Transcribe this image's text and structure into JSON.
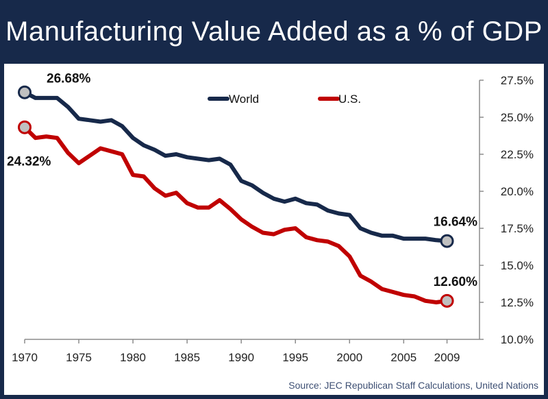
{
  "title": "Manufacturing Value Added as a % of GDP",
  "source": "Source: JEC Republican Staff Calculations, United Nations",
  "colors": {
    "world": "#17294a",
    "us": "#c00000",
    "marker_fill": "#c0c0c0",
    "title_bg": "#17294a"
  },
  "chart_data": {
    "type": "line",
    "title": "Manufacturing Value Added as a % of GDP",
    "xlabel": "",
    "ylabel": "",
    "xlim": [
      1970,
      2012
    ],
    "ylim": [
      10.0,
      27.5
    ],
    "x_ticks": [
      {
        "value": 1970,
        "label": "1970"
      },
      {
        "value": 1975,
        "label": "1975"
      },
      {
        "value": 1980,
        "label": "1980"
      },
      {
        "value": 1985,
        "label": "1985"
      },
      {
        "value": 1990,
        "label": "1990"
      },
      {
        "value": 1995,
        "label": "1995"
      },
      {
        "value": 2000,
        "label": "2000"
      },
      {
        "value": 2005,
        "label": "2005"
      },
      {
        "value": 2009,
        "label": "2009"
      }
    ],
    "y_ticks": [
      {
        "value": 10.0,
        "label": "10.0%"
      },
      {
        "value": 12.5,
        "label": "12.5%"
      },
      {
        "value": 15.0,
        "label": "15.0%"
      },
      {
        "value": 17.5,
        "label": "17.5%"
      },
      {
        "value": 20.0,
        "label": "20.0%"
      },
      {
        "value": 22.5,
        "label": "22.5%"
      },
      {
        "value": 25.0,
        "label": "25.0%"
      },
      {
        "value": 27.5,
        "label": "27.5%"
      }
    ],
    "x": [
      1970,
      1971,
      1972,
      1973,
      1974,
      1975,
      1976,
      1977,
      1978,
      1979,
      1980,
      1981,
      1982,
      1983,
      1984,
      1985,
      1986,
      1987,
      1988,
      1989,
      1990,
      1991,
      1992,
      1993,
      1994,
      1995,
      1996,
      1997,
      1998,
      1999,
      2000,
      2001,
      2002,
      2003,
      2004,
      2005,
      2006,
      2007,
      2008,
      2009
    ],
    "series": [
      {
        "name": "World",
        "key": "world",
        "values": [
          26.68,
          26.3,
          26.3,
          26.3,
          25.7,
          24.9,
          24.8,
          24.7,
          24.8,
          24.4,
          23.6,
          23.1,
          22.8,
          22.4,
          22.5,
          22.3,
          22.2,
          22.1,
          22.2,
          21.8,
          20.7,
          20.4,
          19.9,
          19.5,
          19.3,
          19.5,
          19.2,
          19.1,
          18.7,
          18.5,
          18.4,
          17.5,
          17.2,
          17.0,
          17.0,
          16.8,
          16.8,
          16.8,
          16.7,
          16.64
        ],
        "start_label": "26.68%",
        "end_label": "16.64%"
      },
      {
        "name": "U.S.",
        "key": "us",
        "values": [
          24.32,
          23.6,
          23.7,
          23.6,
          22.6,
          21.9,
          22.4,
          22.9,
          22.7,
          22.5,
          21.1,
          21.0,
          20.2,
          19.7,
          19.9,
          19.2,
          18.9,
          18.9,
          19.4,
          18.8,
          18.1,
          17.6,
          17.2,
          17.1,
          17.4,
          17.5,
          16.9,
          16.7,
          16.6,
          16.3,
          15.6,
          14.3,
          13.9,
          13.4,
          13.2,
          13.0,
          12.9,
          12.6,
          12.5,
          12.6
        ],
        "start_label": "24.32%",
        "end_label": "12.60%"
      }
    ],
    "legend": [
      "World",
      "U.S."
    ],
    "legend_position": "top-center",
    "grid": false
  }
}
